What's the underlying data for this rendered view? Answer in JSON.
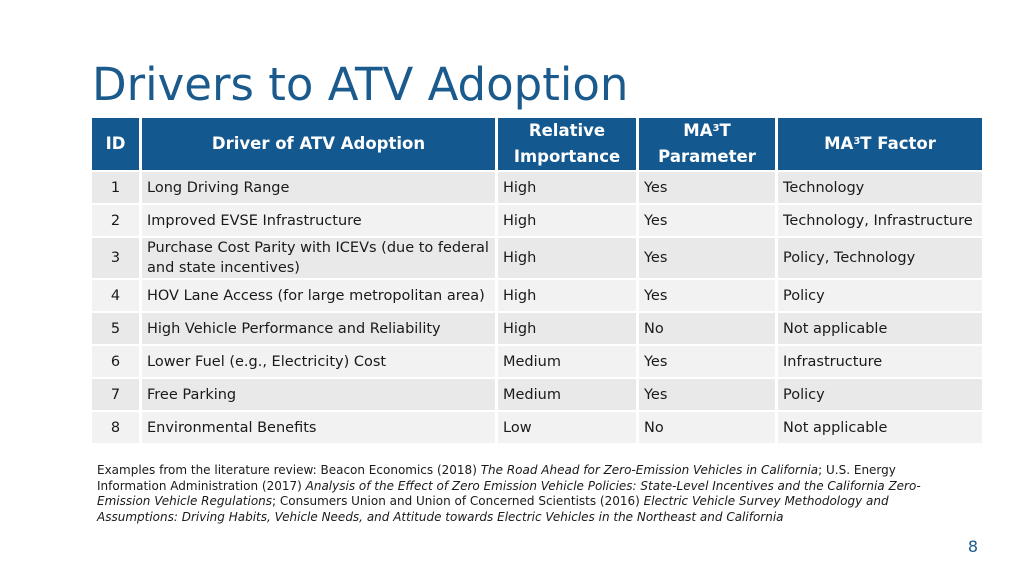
{
  "slide": {
    "title": "Drivers to ATV Adoption",
    "page_number": "8"
  },
  "table": {
    "headers": {
      "id": "ID",
      "driver": "Driver of ATV Adoption",
      "importance_line1": "Relative",
      "importance_line2": "Importance",
      "param_prefix": "MA",
      "param_sup": "3",
      "param_suffix": "T",
      "param_line2": "Parameter",
      "factor_prefix": "MA",
      "factor_sup": "3",
      "factor_suffix": "T Factor"
    },
    "rows": [
      {
        "id": "1",
        "driver": "Long Driving Range",
        "importance": "High",
        "parameter": "Yes",
        "factor": "Technology"
      },
      {
        "id": "2",
        "driver": "Improved EVSE Infrastructure",
        "importance": "High",
        "parameter": "Yes",
        "factor": "Technology, Infrastructure"
      },
      {
        "id": "3",
        "driver": "Purchase Cost Parity with ICEVs (due to federal and state incentives)",
        "importance": "High",
        "parameter": "Yes",
        "factor": "Policy, Technology"
      },
      {
        "id": "4",
        "driver": "HOV Lane Access (for large metropolitan area)",
        "importance": "High",
        "parameter": "Yes",
        "factor": "Policy"
      },
      {
        "id": "5",
        "driver": "High Vehicle Performance and Reliability",
        "importance": "High",
        "parameter": "No",
        "factor": "Not applicable"
      },
      {
        "id": "6",
        "driver": "Lower Fuel (e.g., Electricity) Cost",
        "importance": "Medium",
        "parameter": "Yes",
        "factor": "Infrastructure"
      },
      {
        "id": "7",
        "driver": "Free Parking",
        "importance": "Medium",
        "parameter": "Yes",
        "factor": "Policy"
      },
      {
        "id": "8",
        "driver": "Environmental Benefits",
        "importance": "Low",
        "parameter": "No",
        "factor": "Not applicable"
      }
    ]
  },
  "footnote": {
    "p1": "Examples from the literature review: Beacon Economics (2018) ",
    "i1": "The Road Ahead for Zero-Emission Vehicles in California",
    "p2": "; U.S. Energy Information Administration (2017) ",
    "i2": "Analysis of the Effect of Zero Emission Vehicle Policies: State-Level Incentives and the California Zero-Emission Vehicle Regulations",
    "p3": "; Consumers Union and Union of Concerned Scientists (2016) ",
    "i3": "Electric Vehicle Survey Methodology and Assumptions: Driving Habits, Vehicle Needs, and Attitude towards Electric Vehicles in the Northeast and California"
  },
  "colors": {
    "accent": "#1b5a8c",
    "header_bg": "#13588f",
    "row_bg": "#e9e9e9",
    "row_alt_bg": "#f2f2f2"
  }
}
